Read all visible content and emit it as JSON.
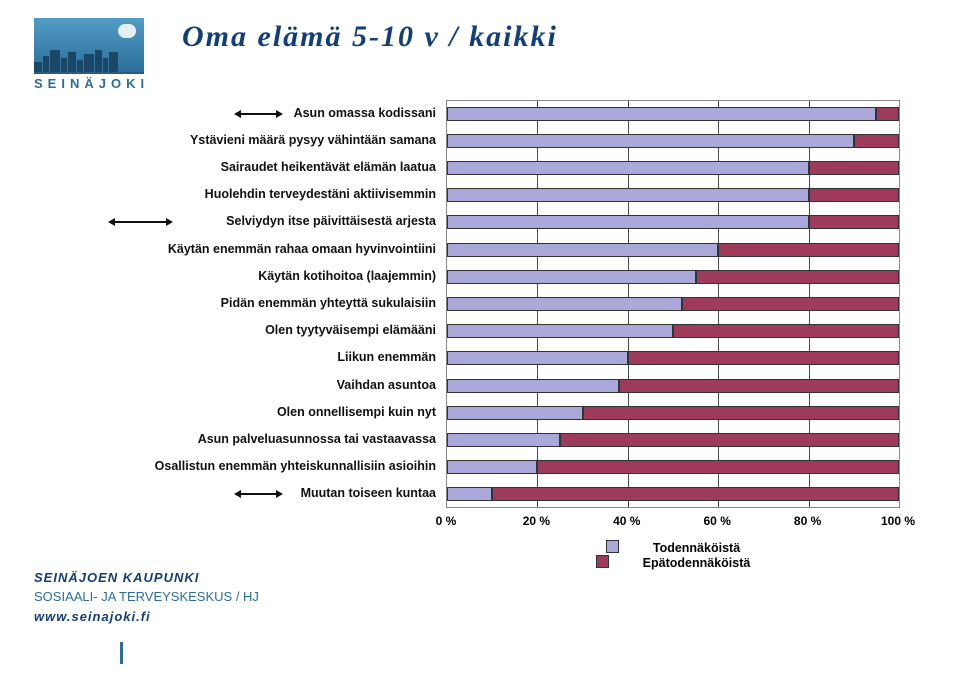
{
  "title": "Oma elämä 5-10 v / kaikki",
  "logo_text": "SEINÄJOKI",
  "footer": {
    "l1": "SEINÄJOEN KAUPUNKI",
    "l2": "SOSIAALI- JA TERVEYSKESKUS / HJ",
    "l3": "www.seinajoki.fi"
  },
  "chart": {
    "type": "stacked-horizontal-bar",
    "xlim": [
      0,
      100
    ],
    "xtick_step": 20,
    "x_suffix": " %",
    "colors": {
      "likely": "#a9a8d8",
      "unlikely": "#9e3a5a",
      "grid": "#000000",
      "border": "#888888",
      "background": "#ffffff"
    },
    "legend": [
      {
        "label": "Todennäköistä",
        "color": "#a9a8d8"
      },
      {
        "label": "Epätodennäköistä",
        "color": "#9e3a5a"
      }
    ],
    "series": [
      {
        "label": "Asun omassa kodissani",
        "likely": 95,
        "unlikely": 5,
        "arrow": true
      },
      {
        "label": "Ystävieni määrä pysyy vähintään samana",
        "likely": 90,
        "unlikely": 10,
        "arrow": false
      },
      {
        "label": "Sairaudet heikentävät elämän laatua",
        "likely": 80,
        "unlikely": 20,
        "arrow": false
      },
      {
        "label": "Huolehdin terveydestäni aktiivisemmin",
        "likely": 80,
        "unlikely": 20,
        "arrow": false
      },
      {
        "label": "Selviydyn itse päivittäisestä arjesta",
        "likely": 80,
        "unlikely": 20,
        "arrow": true
      },
      {
        "label": "Käytän enemmän rahaa omaan hyvinvointiini",
        "likely": 60,
        "unlikely": 40,
        "arrow": false
      },
      {
        "label": "Käytän kotihoitoa (laajemmin)",
        "likely": 55,
        "unlikely": 45,
        "arrow": false
      },
      {
        "label": "Pidän enemmän yhteyttä sukulaisiin",
        "likely": 52,
        "unlikely": 48,
        "arrow": false
      },
      {
        "label": "Olen tyytyväisempi elämääni",
        "likely": 50,
        "unlikely": 50,
        "arrow": false
      },
      {
        "label": "Liikun enemmän",
        "likely": 40,
        "unlikely": 60,
        "arrow": false
      },
      {
        "label": "Vaihdan asuntoa",
        "likely": 38,
        "unlikely": 62,
        "arrow": false
      },
      {
        "label": "Olen onnellisempi kuin nyt",
        "likely": 30,
        "unlikely": 70,
        "arrow": false
      },
      {
        "label": "Asun palveluasunnossa tai vastaavassa",
        "likely": 25,
        "unlikely": 75,
        "arrow": false
      },
      {
        "label": "Osallistun enemmän yhteiskunnallisiin asioihin",
        "likely": 20,
        "unlikely": 80,
        "arrow": false
      },
      {
        "label": "Muutan toiseen kuntaa",
        "likely": 10,
        "unlikely": 90,
        "arrow": true
      }
    ]
  }
}
